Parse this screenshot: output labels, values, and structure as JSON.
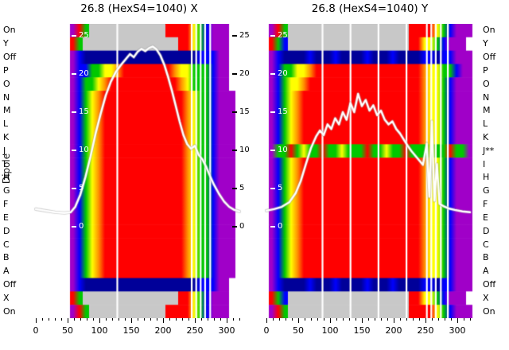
{
  "titles": {
    "left": "26.8 (HexS4=1040) X",
    "right": "26.8 (HexS4=1040) Y"
  },
  "side_axis_label": "Dipole",
  "row_labels_left": [
    "On",
    "Y",
    "Off",
    "P",
    "O",
    "N",
    "M",
    "L",
    "K",
    "J",
    "I",
    "H",
    "G",
    "F",
    "E",
    "D",
    "C",
    "B",
    "A",
    "Off",
    "X",
    "On"
  ],
  "row_labels_right": [
    "On",
    "Y",
    "Off",
    "P",
    "O",
    "N",
    "M",
    "L",
    "K",
    "J**",
    "I",
    "H",
    "G",
    "F",
    "E",
    "D",
    "C",
    "B",
    "A",
    "Off",
    "X",
    "On"
  ],
  "x_axis": {
    "tick_labels": [
      "0",
      "50",
      "100",
      "150",
      "200",
      "250",
      "300"
    ],
    "tick_values": [
      0,
      50,
      100,
      150,
      200,
      250,
      300
    ],
    "minor_step": 10,
    "max": 320
  },
  "y_scale": {
    "tick_labels": [
      "25",
      "20",
      "15",
      "10",
      "5",
      "0"
    ],
    "tick_values": [
      25,
      20,
      15,
      10,
      5,
      0
    ]
  },
  "colormap": {
    "W": "#ffffff",
    "G": "#c8c8c8",
    "P": "#a000c8",
    "B": "#0000ff",
    "D": "#000099",
    "N": "#00c800",
    "Y": "#ffff00",
    "O": "#ff9100",
    "R": "#ff0000"
  },
  "chart_data": {
    "type": "heatmap",
    "x_range": [
      0,
      320
    ],
    "profile_scale_range": [
      0,
      25
    ],
    "row_categories": [
      "On",
      "Y",
      "Off",
      "P",
      "O",
      "N",
      "M",
      "L",
      "K",
      "J",
      "I",
      "H",
      "G",
      "F",
      "E",
      "D",
      "C",
      "B",
      "A",
      "Off",
      "X",
      "On"
    ],
    "panels": [
      {
        "id": "x",
        "title": "26.8 (HexS4=1040) X",
        "grid_rows": [
          "WWWWWWPRNGGGGGGGGGGGGRRRRYNBPPPWWW",
          "WWWWWWRNGGGGGGGGGGGGGGGRRYNBPPPWWW",
          "WWWWWWPBDDDDDDDDDDDDDDDDDDBBBPPWWW",
          "WWWWWWPBBNNYYORRRRRRRROYYNNNBPPWWW",
          "WWWWWWPBNNYORRRRRRRRRRROYNNNBPPWWW",
          "WWWWWWPBNYORRRRRRRRRRRRROYNNBPPPWW",
          "WWWWWWPBNYORRRRRRRRRRRRROYNNBPPPWW",
          "WWWWWWPBNYORRRRRRRRRRRRROYNNBPPPWW",
          "WWWWWWPBNYORRRRRRRRRRRRROYNNBPPPWW",
          "WWWWWWPBNYORRRRRRRRRRRRROYNNBPPPWW",
          "WWWWWWPBNYORRRRRRRRRRRRROYNNBPPPWW",
          "WWWWWWPBNYORRRRRRRRRRRRROYNNBPPPWW",
          "WWWWWWPBNYORRRRRRRRRRRRROYNNBPPPWW",
          "WWWWWWPBNYORRRRRRRRRRRRROYNNBPPPWW",
          "WWWWWWPBNYORRRRRRRRRRRRROYNNBPPPWW",
          "WWWWWWPBNYORRRRRRRRRRRRROYNNBPPPWW",
          "WWWWWWPBNYORRRRRRRRRRRRROYNNBPPPWW",
          "WWWWWWPBNYORRRRRRRRRRRRROYNNBPPPWW",
          "WWWWWWPBNYORRRRRRRRRRRRROYNNBPPPWW",
          "WWWWWWPBDDDDDDDDDDDDDDDDDDBBBPPWWW",
          "WWWWWWRNGGGGGGGGGGGGGGGRRYNBPPPWWW",
          "WWWWWWPRNGGGGGGGGGGGGRRRRYNBPPPWWW"
        ],
        "dead_columns": [
          128,
          245,
          252,
          259,
          266,
          274
        ],
        "profile": [
          [
            0,
            2.3
          ],
          [
            15,
            2.1
          ],
          [
            30,
            1.9
          ],
          [
            45,
            1.8
          ],
          [
            55,
            1.9
          ],
          [
            62,
            2.6
          ],
          [
            70,
            4.2
          ],
          [
            78,
            6.5
          ],
          [
            86,
            9.2
          ],
          [
            94,
            12.2
          ],
          [
            102,
            14.8
          ],
          [
            110,
            17.2
          ],
          [
            118,
            19.0
          ],
          [
            126,
            20.3
          ],
          [
            134,
            21.2
          ],
          [
            142,
            22.0
          ],
          [
            148,
            22.6
          ],
          [
            154,
            22.2
          ],
          [
            160,
            22.9
          ],
          [
            166,
            23.3
          ],
          [
            172,
            23.0
          ],
          [
            178,
            23.4
          ],
          [
            184,
            23.6
          ],
          [
            190,
            23.2
          ],
          [
            196,
            22.4
          ],
          [
            202,
            21.2
          ],
          [
            208,
            19.6
          ],
          [
            214,
            17.8
          ],
          [
            220,
            15.8
          ],
          [
            226,
            13.8
          ],
          [
            232,
            12.0
          ],
          [
            238,
            10.8
          ],
          [
            244,
            10.2
          ],
          [
            250,
            10.6
          ],
          [
            256,
            9.4
          ],
          [
            262,
            8.8
          ],
          [
            268,
            7.8
          ],
          [
            274,
            6.6
          ],
          [
            280,
            5.5
          ],
          [
            288,
            4.3
          ],
          [
            296,
            3.3
          ],
          [
            304,
            2.6
          ],
          [
            312,
            2.2
          ],
          [
            320,
            2.0
          ]
        ]
      },
      {
        "id": "y",
        "title": "26.8 (HexS4=1040) Y",
        "grid_rows": [
          "WPRNGGGGGGGGGGGGGGGGGGGRRRRYNBPPPW",
          "WRNBGGGGGGGGGGGGGGGGGGGRRYYNBPPPWW",
          "WPBDDDDBDDDBDDDDBDDDBDDDDBBDBBPPPW",
          "WPBNNYYORRRRRRRRRRRRRRRRROYYNNBPPW",
          "WPBNYYORRRRRRRRRRRRRRRRRROYYNBPPPW",
          "WPBNYORRRRRRRRRRRRRRRRRRROYYNBPPPW",
          "WPBNYORRRRRRRRRRRRRRRRRRROYYNBPPPW",
          "WPBNYORRRRRRRRRRRRRRRRRRROYYNBPPPW",
          "WPBNYORRRRRRRRRRRRRRRRRRROYYNBPPPW",
          "WPNNRNYNNRNNYNNNRNNYNNRNNNYNNRNNPW",
          "WPBNYORRRRRRRRRRRRRRRRRRROYYNBPPPW",
          "WPBNYORRRRRRRRRRRRRRRRRRROYYNBPPPW",
          "WPBNYORRRRRRRRRRRRRRRRRRROYYNBPPPW",
          "WPBNYORRRRRRRRRRRRRRRRRRROYYNBPPPW",
          "WPBNYORRRRRRRRRRRRRRRRRRROYYNBPPPW",
          "WPBNYORRRRRRRRRRRRRRRRRRROYYNBPPPW",
          "WPBNYORRRRRRRRRRRRRRRRRRROYYNBPPPW",
          "WPBNYORRRRRRRRRRRRRRRRRRROYYNBPPPW",
          "WPBNYORRRRRRRRRRRRRRRRRRROYYNBPPPW",
          "WPBDDDDBDDDBDDDDBDDDBDDDDBBDBBPPPW",
          "WRNBGGGGGGGGGGGGGGGGGGGRRYYNBPPPWW",
          "WPRNGGGGGGGGGGGGGGGGGGGRRRRYNBPPPW"
        ],
        "dead_columns": [
          88,
          132,
          176,
          220,
          252,
          259,
          266,
          274,
          285
        ],
        "profile": [
          [
            0,
            2.1
          ],
          [
            12,
            2.3
          ],
          [
            24,
            2.6
          ],
          [
            36,
            3.2
          ],
          [
            46,
            4.4
          ],
          [
            54,
            6.0
          ],
          [
            62,
            8.2
          ],
          [
            70,
            10.3
          ],
          [
            78,
            11.8
          ],
          [
            84,
            12.6
          ],
          [
            90,
            12.0
          ],
          [
            96,
            13.4
          ],
          [
            102,
            12.8
          ],
          [
            108,
            14.2
          ],
          [
            114,
            13.4
          ],
          [
            120,
            15.0
          ],
          [
            126,
            14.0
          ],
          [
            132,
            16.2
          ],
          [
            138,
            15.0
          ],
          [
            144,
            17.4
          ],
          [
            150,
            15.8
          ],
          [
            156,
            16.6
          ],
          [
            162,
            15.2
          ],
          [
            168,
            15.9
          ],
          [
            174,
            14.6
          ],
          [
            180,
            15.2
          ],
          [
            186,
            14.0
          ],
          [
            192,
            13.4
          ],
          [
            198,
            13.8
          ],
          [
            204,
            12.8
          ],
          [
            210,
            12.2
          ],
          [
            216,
            11.4
          ],
          [
            222,
            10.6
          ],
          [
            228,
            9.9
          ],
          [
            234,
            9.3
          ],
          [
            240,
            8.7
          ],
          [
            246,
            8.1
          ],
          [
            252,
            10.9
          ],
          [
            256,
            3.9
          ],
          [
            260,
            13.8
          ],
          [
            264,
            3.4
          ],
          [
            268,
            8.2
          ],
          [
            272,
            3.0
          ],
          [
            278,
            2.7
          ],
          [
            286,
            2.4
          ],
          [
            296,
            2.2
          ],
          [
            308,
            2.0
          ],
          [
            320,
            1.9
          ]
        ]
      }
    ]
  }
}
